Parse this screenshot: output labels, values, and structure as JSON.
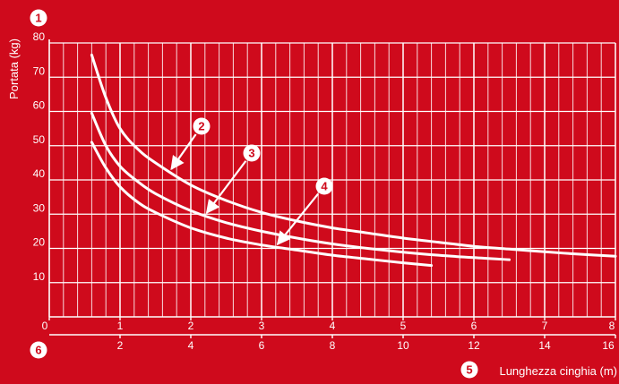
{
  "colors": {
    "background": "#cf0a1c",
    "ink": "#ffffff"
  },
  "chart_data": {
    "type": "line",
    "ylabel": "Portata (kg)",
    "xlabel": "Lunghezza cinghia (m)",
    "ylim": [
      0,
      80
    ],
    "xlim": [
      0,
      8
    ],
    "secondary_xlim": [
      0,
      16
    ],
    "y_ticks": [
      "10",
      "20",
      "30",
      "40",
      "50",
      "60",
      "70",
      "80"
    ],
    "x_ticks": [
      "0",
      "1",
      "2",
      "3",
      "4",
      "5",
      "6",
      "7",
      "8"
    ],
    "secondary_x_ticks": [
      "2",
      "4",
      "6",
      "8",
      "10",
      "12",
      "14",
      "16"
    ],
    "grid": true,
    "markers": {
      "y_axis": "1",
      "secondary_x_axis": "6",
      "x_axis_label": "5"
    },
    "series": [
      {
        "name": "2",
        "x": [
          0.6,
          0.8,
          1.0,
          1.25,
          1.5,
          2.0,
          2.5,
          3.0,
          3.5,
          4.0,
          4.5,
          5.0,
          5.5,
          6.0,
          6.5,
          7.0,
          7.5,
          8.0
        ],
        "y": [
          76.5,
          64,
          55,
          49,
          45,
          38.5,
          34,
          30.5,
          28,
          26,
          24.5,
          23,
          21.8,
          20.6,
          19.8,
          19,
          18.3,
          17.7
        ]
      },
      {
        "name": "3",
        "x": [
          0.6,
          0.8,
          1.0,
          1.25,
          1.5,
          2.0,
          2.5,
          3.0,
          3.5,
          4.0,
          4.5,
          5.0,
          5.5,
          6.0,
          6.5
        ],
        "y": [
          59.5,
          50,
          44,
          39.5,
          36,
          31,
          27.5,
          25,
          23,
          21.3,
          20,
          18.9,
          18,
          17.3,
          16.7
        ]
      },
      {
        "name": "4",
        "x": [
          0.6,
          0.8,
          1.0,
          1.25,
          1.5,
          2.0,
          2.5,
          3.0,
          3.5,
          4.0,
          4.5,
          5.0,
          5.4
        ],
        "y": [
          51,
          43.5,
          38,
          33.5,
          30.5,
          26,
          23,
          21,
          19.5,
          18,
          16.9,
          15.8,
          15
        ]
      }
    ]
  }
}
